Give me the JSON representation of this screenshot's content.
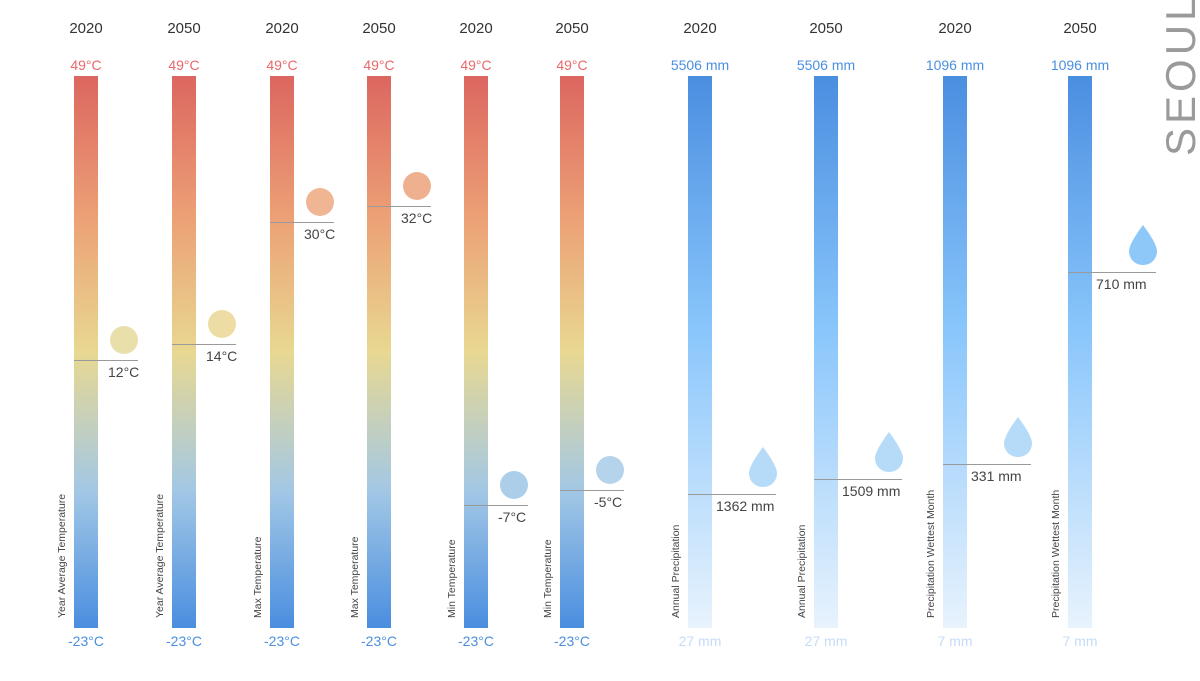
{
  "city": "SEOUL",
  "colors": {
    "temp_max": "#e8686b",
    "temp_min": "#4a8fe0",
    "prec_max": "#4a8fe0",
    "prec_min": "#c4dcf7"
  },
  "chart_data": {
    "type": "bar",
    "title": "SEOUL",
    "series": [
      {
        "year": "2020",
        "label": "Year Average Temperature",
        "kind": "temp",
        "max_label": "49°C",
        "min_label": "-23°C",
        "max": 49,
        "min": -23,
        "value": 12,
        "value_label": "12°C",
        "icon": "circle-icon"
      },
      {
        "year": "2050",
        "label": "Year Average Temperature",
        "kind": "temp",
        "max_label": "49°C",
        "min_label": "-23°C",
        "max": 49,
        "min": -23,
        "value": 14,
        "value_label": "14°C",
        "icon": "circle-icon"
      },
      {
        "year": "2020",
        "label": "Max Temperature",
        "kind": "temp",
        "max_label": "49°C",
        "min_label": "-23°C",
        "max": 49,
        "min": -23,
        "value": 30,
        "value_label": "30°C",
        "icon": "circle-icon"
      },
      {
        "year": "2050",
        "label": "Max Temperature",
        "kind": "temp",
        "max_label": "49°C",
        "min_label": "-23°C",
        "max": 49,
        "min": -23,
        "value": 32,
        "value_label": "32°C",
        "icon": "circle-icon"
      },
      {
        "year": "2020",
        "label": "Min Temperature",
        "kind": "temp",
        "max_label": "49°C",
        "min_label": "-23°C",
        "max": 49,
        "min": -23,
        "value": -7,
        "value_label": "-7°C",
        "icon": "circle-icon"
      },
      {
        "year": "2050",
        "label": "Min Temperature",
        "kind": "temp",
        "max_label": "49°C",
        "min_label": "-23°C",
        "max": 49,
        "min": -23,
        "value": -5,
        "value_label": "-5°C",
        "icon": "circle-icon"
      },
      {
        "year": "2020",
        "label": "Annual Precipitation",
        "kind": "prec",
        "max_label": "5506 mm",
        "min_label": "27 mm",
        "max": 5506,
        "min": 27,
        "value": 1362,
        "value_label": "1362 mm",
        "icon": "water-drop-icon"
      },
      {
        "year": "2050",
        "label": "Annual Precipitation",
        "kind": "prec",
        "max_label": "5506 mm",
        "min_label": "27 mm",
        "max": 5506,
        "min": 27,
        "value": 1509,
        "value_label": "1509 mm",
        "icon": "water-drop-icon"
      },
      {
        "year": "2020",
        "label": "Precipitation Wettest Month",
        "kind": "prec",
        "max_label": "1096 mm",
        "min_label": "7 mm",
        "max": 1096,
        "min": 7,
        "value": 331,
        "value_label": "331 mm",
        "icon": "water-drop-icon"
      },
      {
        "year": "2050",
        "label": "Precipitation Wettest Month",
        "kind": "prec",
        "max_label": "1096 mm",
        "min_label": "7 mm",
        "max": 1096,
        "min": 7,
        "value": 710,
        "value_label": "710 mm",
        "icon": "water-drop-icon"
      }
    ]
  }
}
